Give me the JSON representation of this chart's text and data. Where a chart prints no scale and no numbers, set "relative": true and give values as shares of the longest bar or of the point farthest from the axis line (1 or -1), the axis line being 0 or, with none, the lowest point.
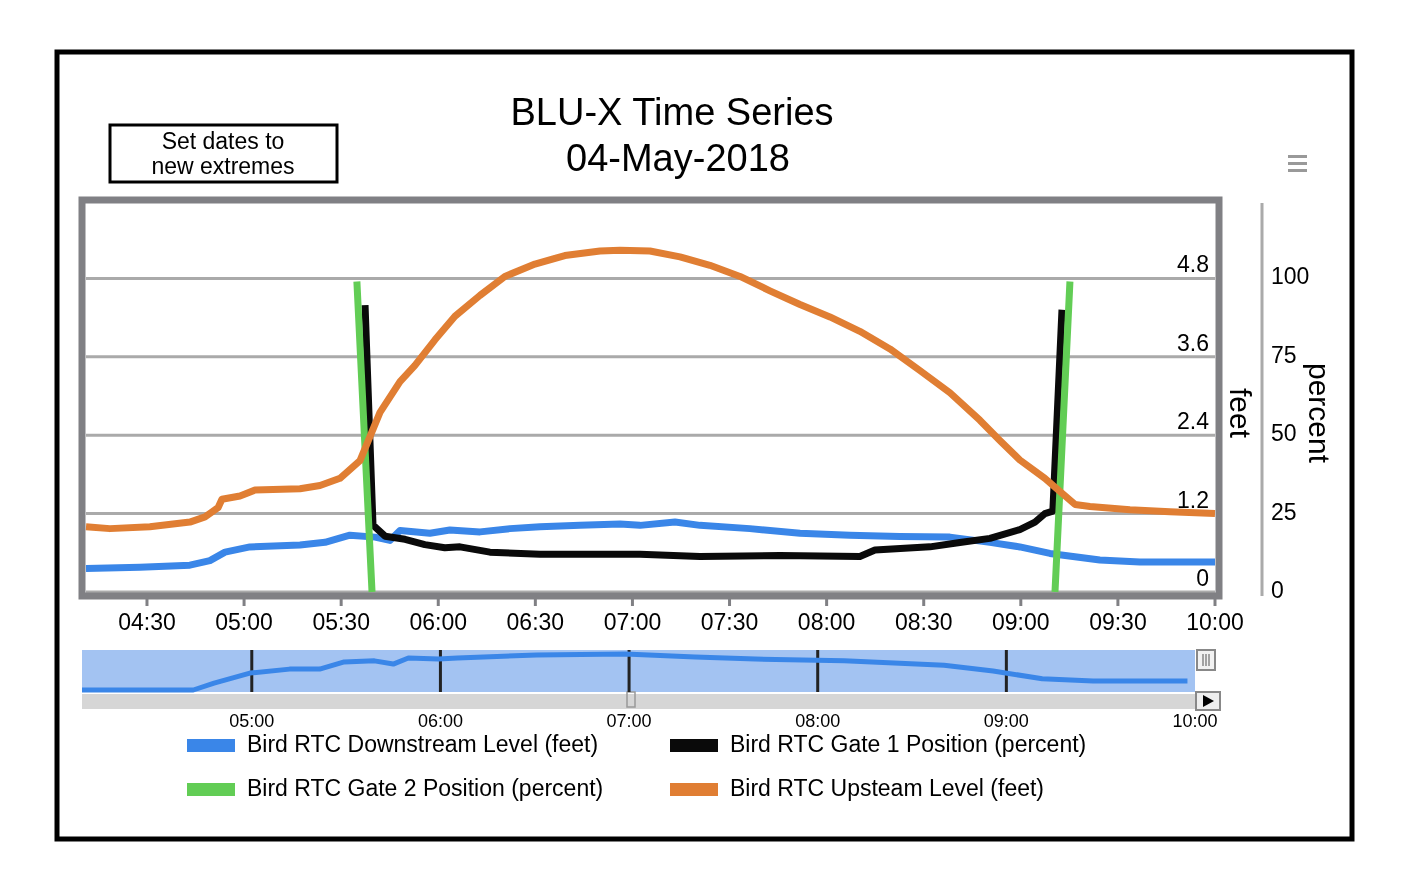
{
  "chart_data": [
    {
      "type": "line",
      "title": "BLU-X Time Series",
      "subtitle": "04-May-2018",
      "ylabel": "feet",
      "y2label": "percent",
      "annotations": [
        "Set dates to new extremes"
      ],
      "xlim": [
        4.186,
        10
      ],
      "xticks": [
        {
          "value": 4.5,
          "label": "04:30"
        },
        {
          "value": 5,
          "label": "05:00"
        },
        {
          "value": 5.5,
          "label": "05:30"
        },
        {
          "value": 6,
          "label": "06:00"
        },
        {
          "value": 6.5,
          "label": "06:30"
        },
        {
          "value": 7,
          "label": "07:00"
        },
        {
          "value": 7.5,
          "label": "07:30"
        },
        {
          "value": 8,
          "label": "08:00"
        },
        {
          "value": 8.5,
          "label": "08:30"
        },
        {
          "value": 9,
          "label": "09:00"
        },
        {
          "value": 9.5,
          "label": "09:30"
        },
        {
          "value": 10,
          "label": "10:00"
        }
      ],
      "ylim": [
        0,
        6
      ],
      "yticks": [
        0,
        1.2,
        2.4,
        3.6,
        4.8
      ],
      "y2lim": [
        0,
        125
      ],
      "y2ticks": [
        0,
        25,
        50,
        75,
        100
      ],
      "grid": "y",
      "legend": "bottom",
      "line_style": "solid",
      "marker": "none",
      "series": [
        {
          "name": "Bird RTC Downstream Level (feet)",
          "color": "#3a86e8",
          "x": [
            4.186,
            4.464,
            4.721,
            4.824,
            4.902,
            5.03,
            5.288,
            5.417,
            5.545,
            5.674,
            5.751,
            5.803,
            5.957,
            6.06,
            6.215,
            6.369,
            6.524,
            6.73,
            6.936,
            7.039,
            7.219,
            7.348,
            7.605,
            7.863,
            8.12,
            8.377,
            8.635,
            8.841,
            8.995,
            9.15,
            9.407,
            9.613,
            10
          ],
          "values": [
            0.36,
            0.38,
            0.41,
            0.48,
            0.61,
            0.69,
            0.72,
            0.76,
            0.87,
            0.84,
            0.79,
            0.94,
            0.9,
            0.95,
            0.92,
            0.97,
            1.0,
            1.02,
            1.04,
            1.02,
            1.07,
            1.02,
            0.97,
            0.9,
            0.87,
            0.85,
            0.84,
            0.76,
            0.69,
            0.59,
            0.49,
            0.46,
            0.46
          ]
        },
        {
          "name": "Bird RTC Gate 1 Position (percent)",
          "color": "#0a0a0a",
          "axis": "y2",
          "x": [
            5.623,
            5.664,
            5.726,
            5.829,
            5.931,
            6.034,
            6.112,
            6.266,
            6.524,
            7.039,
            7.348,
            7.76,
            8.171,
            8.249,
            8.532,
            8.686,
            8.841,
            8.995,
            9.073,
            9.124,
            9.165,
            9.212
          ],
          "values": [
            91.5,
            21.3,
            17.8,
            16.8,
            15.1,
            14.1,
            14.4,
            12.7,
            12,
            12,
            11.3,
            11.6,
            11.3,
            13.4,
            14.4,
            15.8,
            17.1,
            19.9,
            22.3,
            25,
            25.8,
            90
          ]
        },
        {
          "name": "Bird RTC Gate 2 Position (percent)",
          "color": "#62cd55",
          "axis": "y2",
          "x": [
            5.581,
            5.659,
            7.0,
            9.176,
            9.253
          ],
          "values": [
            99,
            0,
            null,
            0,
            99
          ]
        },
        {
          "name": "Bird RTC Upsteam Level (feet)",
          "color": "#e07e33",
          "x": [
            4.186,
            4.309,
            4.515,
            4.721,
            4.799,
            4.866,
            4.886,
            4.979,
            5.056,
            5.288,
            5.391,
            5.494,
            5.597,
            5.7,
            5.803,
            5.88,
            5.983,
            6.086,
            6.215,
            6.343,
            6.498,
            6.652,
            6.833,
            6.936,
            7.09,
            7.245,
            7.399,
            7.554,
            7.708,
            7.863,
            8.017,
            8.171,
            8.326,
            8.48,
            8.635,
            8.789,
            8.892,
            8.995,
            9.124,
            9.201,
            9.279,
            9.356,
            9.562,
            9.768,
            10
          ],
          "values": [
            1.0,
            0.97,
            1.0,
            1.07,
            1.15,
            1.29,
            1.42,
            1.47,
            1.56,
            1.58,
            1.63,
            1.74,
            2.01,
            2.75,
            3.22,
            3.47,
            3.86,
            4.22,
            4.54,
            4.83,
            5.02,
            5.15,
            5.22,
            5.23,
            5.22,
            5.13,
            5.0,
            4.83,
            4.61,
            4.4,
            4.21,
            3.99,
            3.72,
            3.39,
            3.05,
            2.63,
            2.32,
            2.02,
            1.74,
            1.54,
            1.34,
            1.31,
            1.26,
            1.23,
            1.2
          ]
        }
      ]
    },
    {
      "type": "line",
      "relative": true,
      "xlim": [
        4.1,
        10
      ],
      "xticks": [
        {
          "value": 5,
          "label": "05:00"
        },
        {
          "value": 6,
          "label": "06:00"
        },
        {
          "value": 7,
          "label": "07:00"
        },
        {
          "value": 8,
          "label": "08:00"
        },
        {
          "value": 9,
          "label": "09:00"
        },
        {
          "value": 10,
          "label": "10:00"
        }
      ],
      "grid": "x",
      "tick_labels": "x",
      "series": [
        {
          "color": "#3a86e8",
          "x": [
            4.1,
            4.69,
            4.8,
            4.99,
            5.2,
            5.36,
            5.49,
            5.65,
            5.75,
            5.83,
            5.99,
            6.09,
            6.51,
            6.98,
            7.35,
            7.67,
            8.14,
            8.67,
            8.93,
            9.19,
            9.46,
            9.96
          ],
          "values": [
            0,
            0,
            0.19,
            0.47,
            0.58,
            0.58,
            0.78,
            0.81,
            0.72,
            0.89,
            0.86,
            0.89,
            0.97,
            1,
            0.92,
            0.86,
            0.81,
            0.69,
            0.53,
            0.31,
            0.25,
            0.25
          ]
        }
      ]
    }
  ]
}
